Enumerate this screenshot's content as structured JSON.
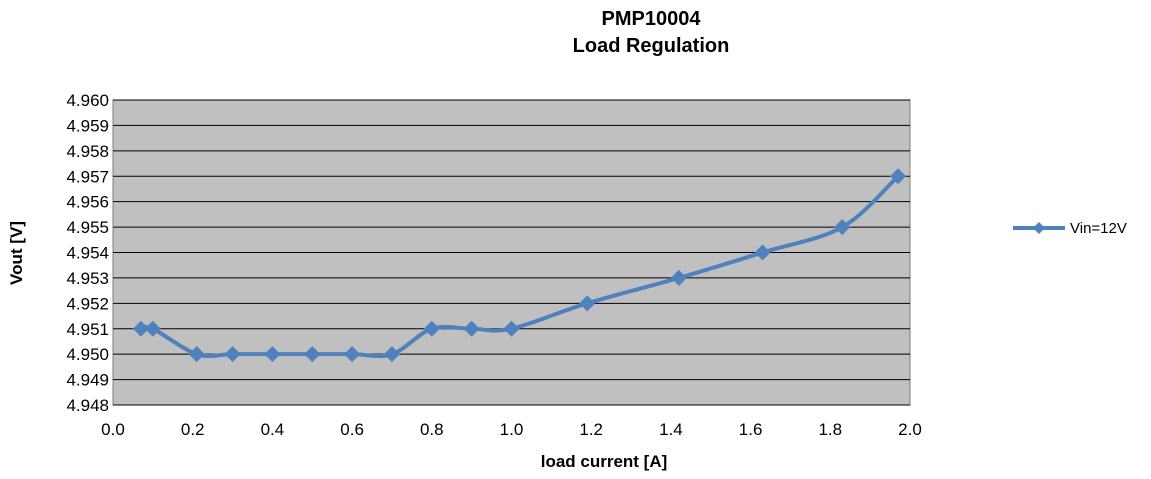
{
  "chart_data": {
    "type": "line",
    "title_lines": [
      "PMP10004",
      "Load Regulation"
    ],
    "xlabel": "load current [A]",
    "ylabel": "Vout [V]",
    "xlim": [
      0.0,
      2.0
    ],
    "ylim": [
      4.948,
      4.96
    ],
    "x_ticks": [
      "0.0",
      "0.2",
      "0.4",
      "0.6",
      "0.8",
      "1.0",
      "1.2",
      "1.4",
      "1.6",
      "1.8",
      "2.0"
    ],
    "y_ticks": [
      "4.948",
      "4.949",
      "4.950",
      "4.951",
      "4.952",
      "4.953",
      "4.954",
      "4.955",
      "4.956",
      "4.957",
      "4.958",
      "4.959",
      "4.960"
    ],
    "grid": "horizontal",
    "legend_position": "right",
    "series": [
      {
        "name": "Vin=12V",
        "color": "#4F81BD",
        "marker": "diamond",
        "x": [
          0.07,
          0.1,
          0.21,
          0.3,
          0.4,
          0.5,
          0.6,
          0.7,
          0.8,
          0.9,
          1.0,
          1.19,
          1.42,
          1.63,
          1.83,
          1.97
        ],
        "y": [
          4.951,
          4.951,
          4.95,
          4.95,
          4.95,
          4.95,
          4.95,
          4.95,
          4.951,
          4.951,
          4.951,
          4.952,
          4.953,
          4.954,
          4.955,
          4.957
        ]
      }
    ]
  }
}
